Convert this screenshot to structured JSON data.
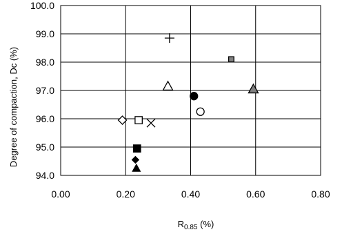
{
  "chart_data": {
    "type": "scatter",
    "title": "",
    "xlabel": "R0.85 (%)",
    "xlabel_parts": {
      "base": "R",
      "subscript": "0.85",
      "suffix": " (%)"
    },
    "ylabel": "Degree of compaction, Dc (%)",
    "xlim": [
      0.0,
      0.8
    ],
    "ylim": [
      94.0,
      100.0
    ],
    "x_ticks": [
      "0.00",
      "0.20",
      "0.40",
      "0.60",
      "0.80"
    ],
    "y_ticks": [
      "94.0",
      "95.0",
      "96.0",
      "97.0",
      "98.0",
      "99.0",
      "100.0"
    ],
    "grid": true,
    "legend": "none",
    "colors": {
      "dark": "#000000",
      "gray": "#808080",
      "outline": "#000000",
      "background": "#ffffff"
    },
    "points": [
      {
        "marker": "plus",
        "fill": "none",
        "x": 0.335,
        "y": 98.85
      },
      {
        "marker": "square",
        "fill": "gray",
        "x": 0.525,
        "y": 98.1
      },
      {
        "marker": "triangle",
        "fill": "none",
        "x": 0.33,
        "y": 97.15
      },
      {
        "marker": "circle",
        "fill": "dark",
        "x": 0.41,
        "y": 96.8
      },
      {
        "marker": "triangle",
        "fill": "gray",
        "x": 0.593,
        "y": 97.05
      },
      {
        "marker": "circle",
        "fill": "none",
        "x": 0.43,
        "y": 96.25
      },
      {
        "marker": "diamond",
        "fill": "none",
        "x": 0.19,
        "y": 95.95
      },
      {
        "marker": "square",
        "fill": "none",
        "x": 0.24,
        "y": 95.95
      },
      {
        "marker": "cross",
        "fill": "none",
        "x": 0.278,
        "y": 95.85
      },
      {
        "marker": "square",
        "fill": "dark",
        "x": 0.235,
        "y": 94.95
      },
      {
        "marker": "diamond",
        "fill": "dark",
        "x": 0.23,
        "y": 94.55
      },
      {
        "marker": "triangle",
        "fill": "dark",
        "x": 0.233,
        "y": 94.25
      }
    ]
  }
}
